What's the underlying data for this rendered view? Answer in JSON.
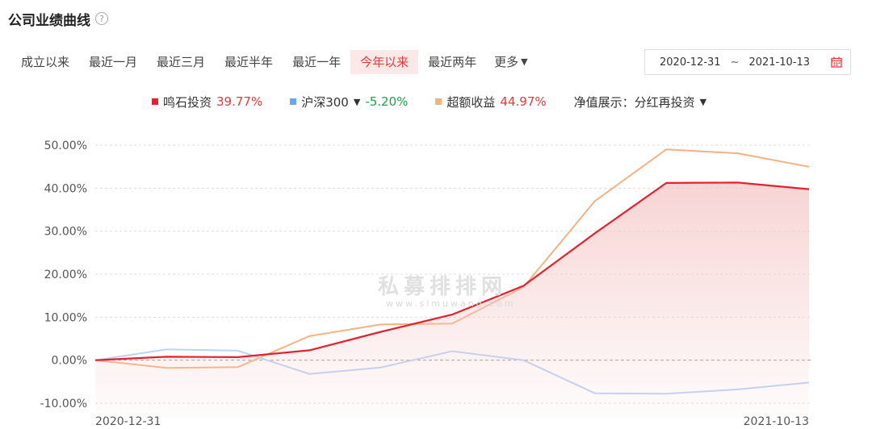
{
  "header": {
    "title": "公司业绩曲线",
    "help_icon": "?"
  },
  "tabs": [
    {
      "label": "成立以来",
      "active": false
    },
    {
      "label": "最近一月",
      "active": false
    },
    {
      "label": "最近三月",
      "active": false
    },
    {
      "label": "最近半年",
      "active": false
    },
    {
      "label": "最近一年",
      "active": false
    },
    {
      "label": "今年以来",
      "active": true
    },
    {
      "label": "最近两年",
      "active": false
    }
  ],
  "more_label": "更多",
  "date_range": {
    "start": "2020-12-31",
    "separator": "~",
    "end": "2021-10-13",
    "icon": "calendar-icon"
  },
  "legend": {
    "items": [
      {
        "name": "鸣石投资",
        "value": "39.77%",
        "swatch": "#e4212e",
        "value_color": "#e4393c",
        "dropdown": false
      },
      {
        "name": "沪深300",
        "value": "-5.20%",
        "swatch": "#6aa7ee",
        "value_color": "#1aa34a",
        "dropdown": true
      },
      {
        "name": "超额收益",
        "value": "44.97%",
        "swatch": "#f4b183",
        "value_color": "#e4393c",
        "dropdown": false
      }
    ],
    "display_label": "净值展示：分红再投资"
  },
  "watermark": {
    "cn": "私募排排网",
    "url": "www.simuwang.com"
  },
  "chart_data": {
    "type": "line",
    "ylim": [
      -10,
      50
    ],
    "yticks": [
      "-10.00%",
      "0.00%",
      "10.00%",
      "20.00%",
      "30.00%",
      "40.00%",
      "50.00%"
    ],
    "x_labels": [
      "2020-12-31",
      "2021-10-13"
    ],
    "grid": true,
    "colors": {
      "company": "#e4212e",
      "index": "#bcd3f3",
      "excess": "#f4b183",
      "fill": "#f5c6c6"
    },
    "series": [
      {
        "name": "鸣石投资",
        "key": "company",
        "fill": true,
        "values": [
          0.0,
          0.8,
          0.7,
          2.3,
          6.6,
          10.6,
          17.3,
          29.5,
          41.2,
          41.3,
          39.77
        ]
      },
      {
        "name": "沪深300",
        "key": "index",
        "values": [
          0.0,
          2.5,
          2.2,
          -3.2,
          -1.7,
          2.1,
          0.0,
          -7.7,
          -7.8,
          -6.8,
          -5.2
        ]
      },
      {
        "name": "超额收益",
        "key": "excess",
        "values": [
          0.0,
          -1.8,
          -1.6,
          5.6,
          8.3,
          8.5,
          17.0,
          37.0,
          49.0,
          48.1,
          44.97
        ]
      }
    ]
  }
}
